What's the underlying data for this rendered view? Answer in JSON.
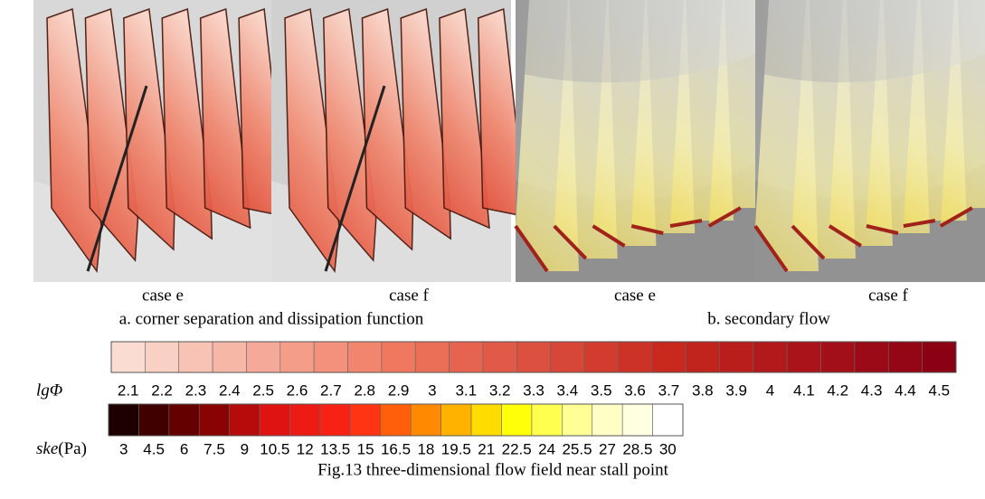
{
  "panels": {
    "a": {
      "cases": [
        "case e",
        "case f"
      ],
      "caption": "a. corner separation and dissipation function"
    },
    "b": {
      "cases": [
        "case e",
        "case f"
      ],
      "caption": "b. secondary flow"
    }
  },
  "colorbars": [
    {
      "label": "lgΦ",
      "ticks": [
        2.1,
        2.2,
        2.3,
        2.4,
        2.5,
        2.6,
        2.7,
        2.8,
        2.9,
        3,
        3.1,
        3.2,
        3.3,
        3.4,
        3.5,
        3.6,
        3.7,
        3.8,
        3.9,
        4,
        4.1,
        4.2,
        4.3,
        4.4,
        4.5
      ]
    },
    {
      "label": "ske",
      "unit": "(Pa)",
      "ticks": [
        3,
        4.5,
        6,
        7.5,
        9,
        10.5,
        12,
        13.5,
        15,
        16.5,
        18,
        19.5,
        21,
        22.5,
        24,
        25.5,
        27,
        28.5,
        30
      ]
    }
  ],
  "figure_caption": "Fig.13 three-dimensional flow field near stall point"
}
